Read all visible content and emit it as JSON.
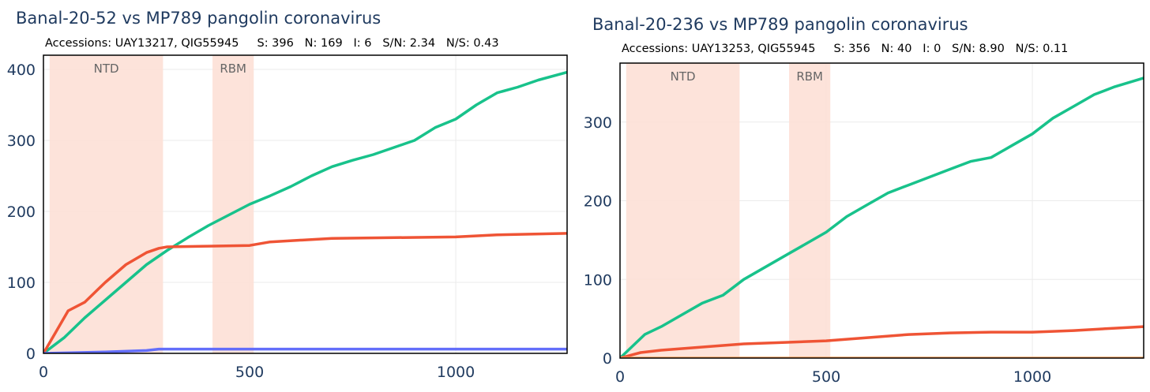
{
  "chart_data": [
    {
      "type": "line",
      "title": "Banal-20-52 vs MP789 pangolin coronavirus",
      "subtitle": "Accessions: UAY13217, QIG55945     S: 396   N: 169   I: 6   S/N: 2.34   N/S: 0.43",
      "xlim": [
        0,
        1270
      ],
      "ylim": [
        0,
        420
      ],
      "xticks": [
        0,
        500,
        1000
      ],
      "yticks": [
        0,
        100,
        200,
        300,
        400
      ],
      "xtick_labels": [
        "0",
        "500",
        "1000"
      ],
      "ytick_labels": [
        "0",
        "100",
        "200",
        "300",
        "400"
      ],
      "grid": true,
      "regions": [
        {
          "label": "NTD",
          "x0": 15,
          "x1": 290,
          "color": "#fde0d6"
        },
        {
          "label": "RBM",
          "x0": 410,
          "x1": 510,
          "color": "#fde0d6"
        }
      ],
      "series": [
        {
          "color": "#18c28b",
          "x": [
            0,
            50,
            100,
            150,
            200,
            250,
            300,
            350,
            400,
            450,
            500,
            550,
            600,
            650,
            700,
            750,
            800,
            850,
            900,
            950,
            1000,
            1050,
            1100,
            1150,
            1200,
            1270
          ],
          "y": [
            0,
            22,
            50,
            75,
            100,
            125,
            145,
            163,
            180,
            195,
            210,
            222,
            235,
            250,
            263,
            272,
            280,
            290,
            300,
            318,
            330,
            350,
            367,
            375,
            385,
            396
          ]
        },
        {
          "color": "#ef5435",
          "x": [
            0,
            30,
            60,
            100,
            150,
            200,
            250,
            280,
            300,
            400,
            500,
            550,
            700,
            1000,
            1100,
            1270
          ],
          "y": [
            0,
            30,
            60,
            72,
            100,
            125,
            142,
            148,
            150,
            151,
            152,
            157,
            162,
            164,
            167,
            169
          ]
        },
        {
          "color": "#636efa",
          "x": [
            0,
            150,
            250,
            280,
            1270
          ],
          "y": [
            0,
            2,
            4,
            6,
            6
          ]
        }
      ]
    },
    {
      "type": "line",
      "title": "Banal-20-236 vs MP789 pangolin coronavirus",
      "subtitle": "Accessions: UAY13253, QIG55945     S: 356   N: 40   I: 0   S/N: 8.90   N/S: 0.11",
      "xlim": [
        0,
        1270
      ],
      "ylim": [
        0,
        375
      ],
      "xticks": [
        0,
        500,
        1000
      ],
      "yticks": [
        0,
        100,
        200,
        300
      ],
      "xtick_labels": [
        "0",
        "500",
        "1000"
      ],
      "ytick_labels": [
        "0",
        "100",
        "200",
        "300"
      ],
      "grid": true,
      "regions": [
        {
          "label": "NTD",
          "x0": 15,
          "x1": 290,
          "color": "#fde0d6"
        },
        {
          "label": "RBM",
          "x0": 410,
          "x1": 510,
          "color": "#fde0d6"
        }
      ],
      "series": [
        {
          "color": "#18c28b",
          "x": [
            0,
            30,
            60,
            100,
            150,
            200,
            250,
            300,
            350,
            400,
            450,
            500,
            550,
            600,
            650,
            700,
            750,
            800,
            850,
            900,
            950,
            1000,
            1050,
            1100,
            1150,
            1200,
            1270
          ],
          "y": [
            0,
            15,
            30,
            40,
            55,
            70,
            80,
            100,
            115,
            130,
            145,
            160,
            180,
            195,
            210,
            220,
            230,
            240,
            250,
            255,
            270,
            285,
            305,
            320,
            335,
            345,
            356
          ]
        },
        {
          "color": "#ef5435",
          "x": [
            0,
            50,
            100,
            200,
            300,
            400,
            500,
            600,
            700,
            800,
            900,
            1000,
            1100,
            1200,
            1270
          ],
          "y": [
            0,
            7,
            10,
            14,
            18,
            20,
            22,
            26,
            30,
            32,
            33,
            33,
            35,
            38,
            40
          ]
        },
        {
          "color": "#ffa15a",
          "x": [
            0,
            1270
          ],
          "y": [
            0,
            0
          ]
        }
      ]
    }
  ]
}
